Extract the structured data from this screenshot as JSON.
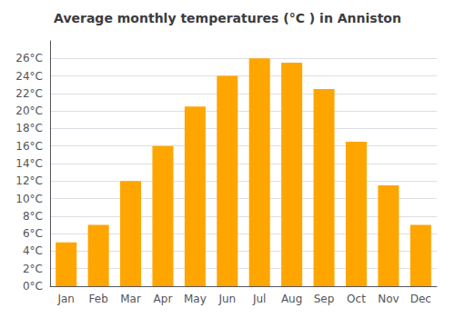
{
  "chart_data": {
    "type": "bar",
    "title": "Average monthly temperatures (°C ) in Anniston",
    "categories": [
      "Jan",
      "Feb",
      "Mar",
      "Apr",
      "May",
      "Jun",
      "Jul",
      "Aug",
      "Sep",
      "Oct",
      "Nov",
      "Dec"
    ],
    "values": [
      5.0,
      7.0,
      12.0,
      16.0,
      20.5,
      24.0,
      26.0,
      25.5,
      22.5,
      16.5,
      11.5,
      7.0
    ],
    "color": "#FFA500",
    "ylim": [
      0,
      28
    ],
    "yticks": [
      {
        "value": 0,
        "label": "0°C"
      },
      {
        "value": 2,
        "label": "2°C"
      },
      {
        "value": 4,
        "label": "4°C"
      },
      {
        "value": 6,
        "label": "6°C"
      },
      {
        "value": 8,
        "label": "8°C"
      },
      {
        "value": 10,
        "label": "10°C"
      },
      {
        "value": 12,
        "label": "12°C"
      },
      {
        "value": 14,
        "label": "14°C"
      },
      {
        "value": 16,
        "label": "16°C"
      },
      {
        "value": 18,
        "label": "18°C"
      },
      {
        "value": 20,
        "label": "20°C"
      },
      {
        "value": 22,
        "label": "22°C"
      },
      {
        "value": 24,
        "label": "24°C"
      },
      {
        "value": 26,
        "label": "26°C"
      }
    ],
    "grid": true
  }
}
